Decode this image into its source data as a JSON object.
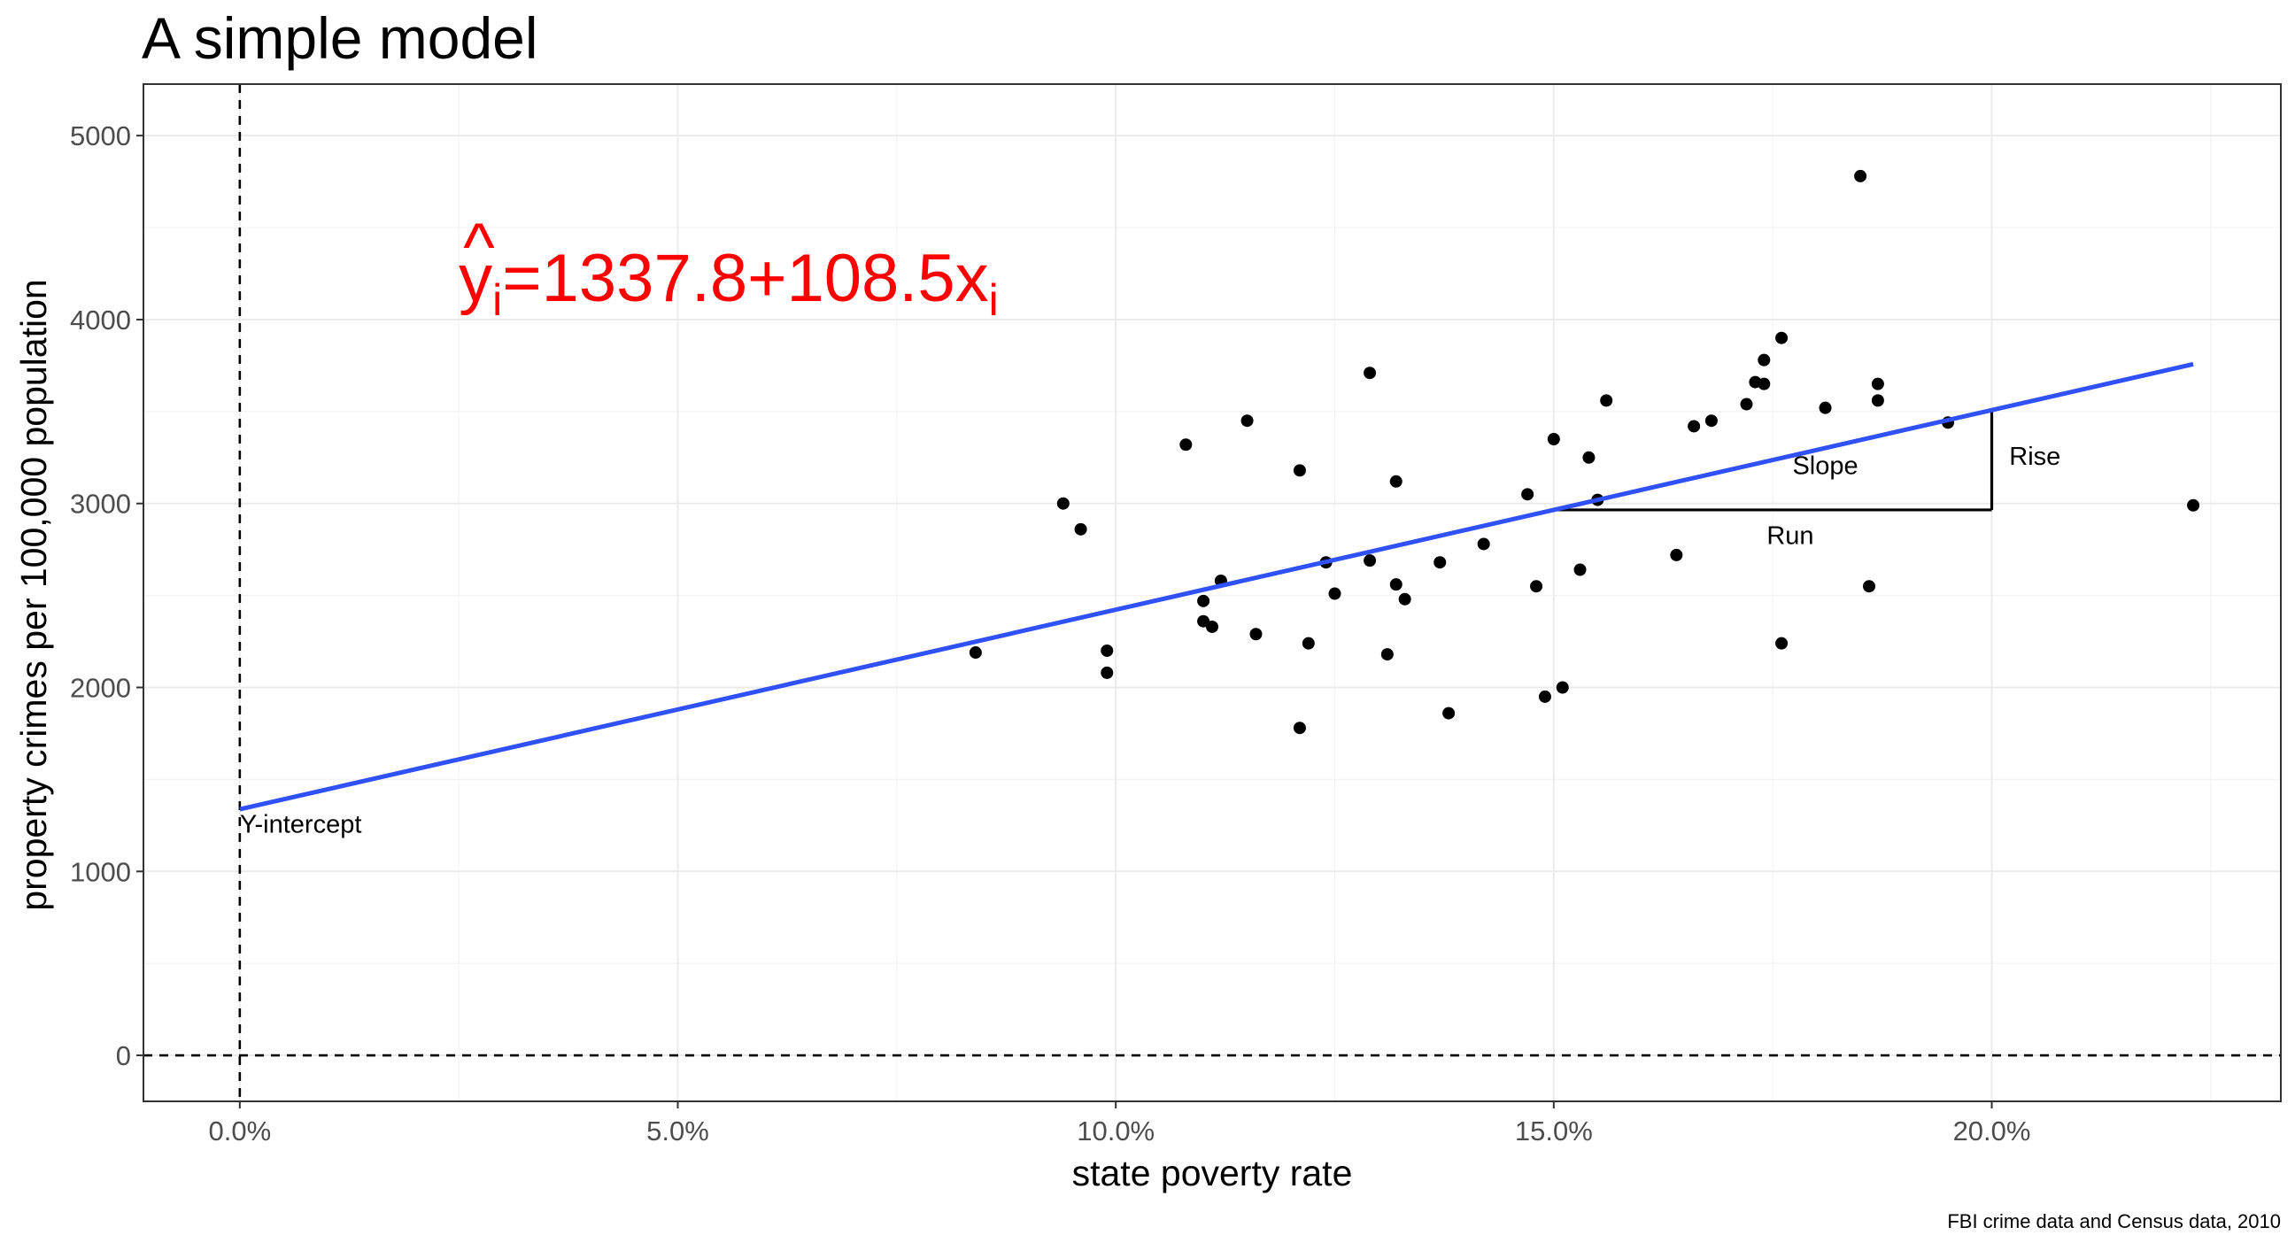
{
  "chart_data": {
    "type": "scatter",
    "title": "A simple model",
    "xlabel": "state poverty rate",
    "ylabel": "property crimes per 100,000 population",
    "caption": "FBI crime data and Census data, 2010",
    "xlim": [
      -1.1,
      23.3
    ],
    "ylim": [
      -250,
      5280
    ],
    "x_ticks": [
      {
        "value": 0,
        "label": "0.0%"
      },
      {
        "value": 5,
        "label": "5.0%"
      },
      {
        "value": 10,
        "label": "10.0%"
      },
      {
        "value": 15,
        "label": "15.0%"
      },
      {
        "value": 20,
        "label": "20.0%"
      }
    ],
    "y_ticks": [
      {
        "value": 0,
        "label": "0"
      },
      {
        "value": 1000,
        "label": "1000"
      },
      {
        "value": 2000,
        "label": "2000"
      },
      {
        "value": 3000,
        "label": "3000"
      },
      {
        "value": 4000,
        "label": "4000"
      },
      {
        "value": 5000,
        "label": "5000"
      }
    ],
    "grid": true,
    "legend": "none",
    "colors": {
      "points": "#000000",
      "regression": "#3050f8",
      "equation": "#ff0000",
      "reference": "#000000"
    },
    "points": [
      {
        "x": 8.4,
        "y": 2190
      },
      {
        "x": 9.4,
        "y": 3000
      },
      {
        "x": 9.6,
        "y": 2860
      },
      {
        "x": 9.9,
        "y": 2080
      },
      {
        "x": 9.9,
        "y": 2200
      },
      {
        "x": 10.8,
        "y": 3320
      },
      {
        "x": 11.0,
        "y": 2470
      },
      {
        "x": 11.0,
        "y": 2360
      },
      {
        "x": 11.1,
        "y": 2330
      },
      {
        "x": 11.2,
        "y": 2580
      },
      {
        "x": 11.5,
        "y": 3450
      },
      {
        "x": 11.6,
        "y": 2290
      },
      {
        "x": 12.1,
        "y": 3180
      },
      {
        "x": 12.1,
        "y": 1780
      },
      {
        "x": 12.2,
        "y": 2240
      },
      {
        "x": 12.4,
        "y": 2680
      },
      {
        "x": 12.5,
        "y": 2510
      },
      {
        "x": 12.9,
        "y": 2690
      },
      {
        "x": 12.9,
        "y": 3710
      },
      {
        "x": 13.1,
        "y": 2180
      },
      {
        "x": 13.2,
        "y": 3120
      },
      {
        "x": 13.2,
        "y": 2560
      },
      {
        "x": 13.3,
        "y": 2480
      },
      {
        "x": 13.7,
        "y": 2680
      },
      {
        "x": 13.8,
        "y": 1860
      },
      {
        "x": 14.2,
        "y": 2780
      },
      {
        "x": 14.7,
        "y": 3050
      },
      {
        "x": 14.8,
        "y": 2550
      },
      {
        "x": 14.9,
        "y": 1950
      },
      {
        "x": 15.0,
        "y": 3350
      },
      {
        "x": 15.1,
        "y": 2000
      },
      {
        "x": 15.3,
        "y": 2640
      },
      {
        "x": 15.4,
        "y": 3250
      },
      {
        "x": 15.5,
        "y": 3020
      },
      {
        "x": 15.6,
        "y": 3560
      },
      {
        "x": 16.4,
        "y": 2720
      },
      {
        "x": 16.6,
        "y": 3420
      },
      {
        "x": 16.8,
        "y": 3450
      },
      {
        "x": 17.2,
        "y": 3540
      },
      {
        "x": 17.3,
        "y": 3660
      },
      {
        "x": 17.4,
        "y": 3780
      },
      {
        "x": 17.4,
        "y": 3650
      },
      {
        "x": 17.6,
        "y": 3900
      },
      {
        "x": 17.6,
        "y": 2240
      },
      {
        "x": 18.1,
        "y": 3520
      },
      {
        "x": 18.5,
        "y": 4780
      },
      {
        "x": 18.6,
        "y": 2550
      },
      {
        "x": 18.7,
        "y": 3650
      },
      {
        "x": 18.7,
        "y": 3560
      },
      {
        "x": 19.5,
        "y": 3440
      },
      {
        "x": 22.3,
        "y": 2990
      }
    ],
    "regression": {
      "intercept": 1337.8,
      "slope": 108.5,
      "x_from": 0,
      "x_to": 22.3
    },
    "reference_lines": {
      "vline_x": 0,
      "hline_y": 0
    },
    "equation": {
      "hat": "^",
      "base": "y",
      "sub": "i",
      "rhs": "=1337.8+108.5x",
      "rhs_sub": "i",
      "anchor": {
        "x": 2.5,
        "y": 4100
      }
    },
    "slope_triangle": {
      "x0": 15,
      "x1": 20
    },
    "annotations": [
      {
        "text": "Y-intercept",
        "x": 0.0,
        "y": 1210,
        "anchor": "start"
      },
      {
        "text": "Slope",
        "x": 18.1,
        "y": 3160,
        "anchor": "middle"
      },
      {
        "text": "Rise",
        "x": 20.2,
        "y": 3210,
        "anchor": "start"
      },
      {
        "text": "Run",
        "x": 17.7,
        "y": 2780,
        "anchor": "middle"
      }
    ]
  }
}
